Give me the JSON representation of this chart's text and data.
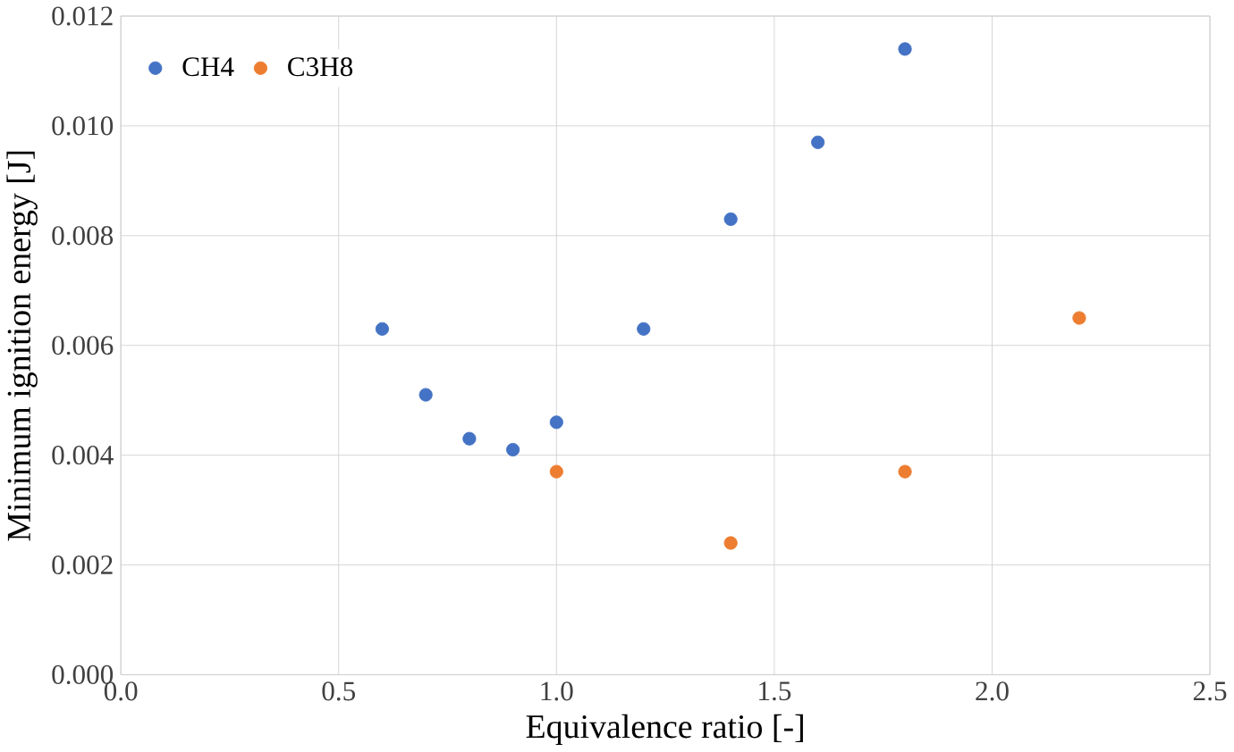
{
  "chart_data": {
    "type": "scatter",
    "xlabel": "Equivalence ratio [-]",
    "ylabel": "Minimum ignition energy [J]",
    "xlim": [
      0,
      2.5
    ],
    "xticks": [
      {
        "value": 0,
        "label": "0.0"
      },
      0.5,
      {
        "value": 1,
        "label": "1.0"
      },
      1.5,
      {
        "value": 2,
        "label": "2.0"
      },
      2.5
    ],
    "ylim": [
      0,
      0.012
    ],
    "yticks": [
      {
        "value": 0,
        "label": "0.000"
      },
      0.002,
      0.004,
      0.006,
      0.008,
      {
        "value": 0.01,
        "label": "0.010"
      },
      0.012
    ],
    "grid": true,
    "legend": "top left",
    "marker": "circle",
    "series": [
      {
        "name": "CH4",
        "color": "#4472c4",
        "x": [
          0.6,
          0.7,
          0.8,
          0.9,
          1.0,
          1.2,
          1.4,
          1.6,
          1.8
        ],
        "values": [
          0.0063,
          0.0051,
          0.0043,
          0.0041,
          0.0046,
          0.0063,
          0.0083,
          0.0097,
          0.0114
        ]
      },
      {
        "name": "C3H8",
        "color": "#ed7d31",
        "x": [
          1.0,
          1.4,
          1.8,
          2.2
        ],
        "values": [
          0.0037,
          0.0024,
          0.0037,
          0.0065
        ]
      }
    ]
  }
}
